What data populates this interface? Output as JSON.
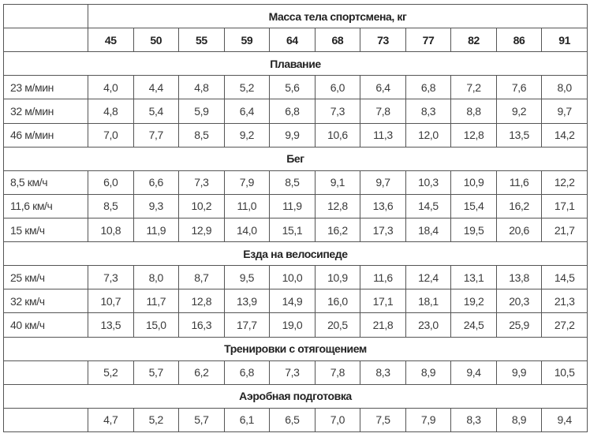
{
  "header": {
    "title": "Масса тела спортсмена, кг",
    "weights": [
      "45",
      "50",
      "55",
      "59",
      "64",
      "68",
      "73",
      "77",
      "82",
      "86",
      "91"
    ]
  },
  "sections": [
    {
      "title": "Плавание",
      "rows": [
        {
          "label": "23 м/мин",
          "values": [
            "4,0",
            "4,4",
            "4,8",
            "5,2",
            "5,6",
            "6,0",
            "6,4",
            "6,8",
            "7,2",
            "7,6",
            "8,0"
          ]
        },
        {
          "label": "32 м/мин",
          "values": [
            "4,8",
            "5,4",
            "5,9",
            "6,4",
            "6,8",
            "7,3",
            "7,8",
            "8,3",
            "8,8",
            "9,2",
            "9,7"
          ]
        },
        {
          "label": "46 м/мин",
          "values": [
            "7,0",
            "7,7",
            "8,5",
            "9,2",
            "9,9",
            "10,6",
            "11,3",
            "12,0",
            "12,8",
            "13,5",
            "14,2"
          ]
        }
      ]
    },
    {
      "title": "Бег",
      "rows": [
        {
          "label": "8,5 км/ч",
          "values": [
            "6,0",
            "6,6",
            "7,3",
            "7,9",
            "8,5",
            "9,1",
            "9,7",
            "10,3",
            "10,9",
            "11,6",
            "12,2"
          ]
        },
        {
          "label": "11,6 км/ч",
          "values": [
            "8,5",
            "9,3",
            "10,2",
            "11,0",
            "11,9",
            "12,8",
            "13,6",
            "14,5",
            "15,4",
            "16,2",
            "17,1"
          ]
        },
        {
          "label": "15 км/ч",
          "values": [
            "10,8",
            "11,9",
            "12,9",
            "14,0",
            "15,1",
            "16,2",
            "17,3",
            "18,4",
            "19,5",
            "20,6",
            "21,7"
          ]
        }
      ]
    },
    {
      "title": "Езда на велосипеде",
      "rows": [
        {
          "label": "25 км/ч",
          "values": [
            "7,3",
            "8,0",
            "8,7",
            "9,5",
            "10,0",
            "10,9",
            "11,6",
            "12,4",
            "13,1",
            "13,8",
            "14,5"
          ]
        },
        {
          "label": "32 км/ч",
          "values": [
            "10,7",
            "11,7",
            "12,8",
            "13,9",
            "14,9",
            "16,0",
            "17,1",
            "18,1",
            "19,2",
            "20,3",
            "21,3"
          ]
        },
        {
          "label": "40 км/ч",
          "values": [
            "13,5",
            "15,0",
            "16,3",
            "17,7",
            "19,0",
            "20,5",
            "21,8",
            "23,0",
            "24,5",
            "25,9",
            "27,2"
          ]
        }
      ]
    },
    {
      "title": "Тренировки с отягощением",
      "rows": [
        {
          "label": "",
          "values": [
            "5,2",
            "5,7",
            "6,2",
            "6,8",
            "7,3",
            "7,8",
            "8,3",
            "8,9",
            "9,4",
            "9,9",
            "10,5"
          ]
        }
      ]
    },
    {
      "title": "Аэробная подготовка",
      "rows": [
        {
          "label": "",
          "values": [
            "4,7",
            "5,2",
            "5,7",
            "6,1",
            "6,5",
            "7,0",
            "7,5",
            "7,9",
            "8,3",
            "8,9",
            "9,4"
          ]
        }
      ]
    }
  ]
}
